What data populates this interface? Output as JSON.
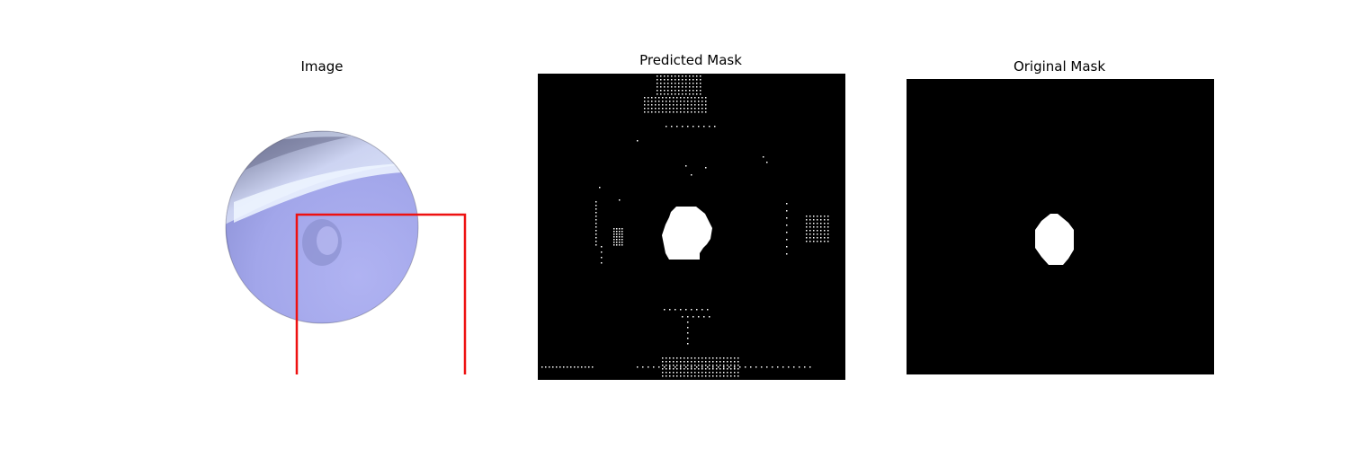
{
  "panels": {
    "image": {
      "title": "Image"
    },
    "predicted": {
      "title": "Predicted Mask"
    },
    "original": {
      "title": "Original Mask"
    }
  },
  "colors": {
    "background": "#ffffff",
    "mask_background": "#000000",
    "mask_foreground": "#ffffff",
    "bounding_box": "#ee1111",
    "tissue": "#a4a8ec"
  }
}
